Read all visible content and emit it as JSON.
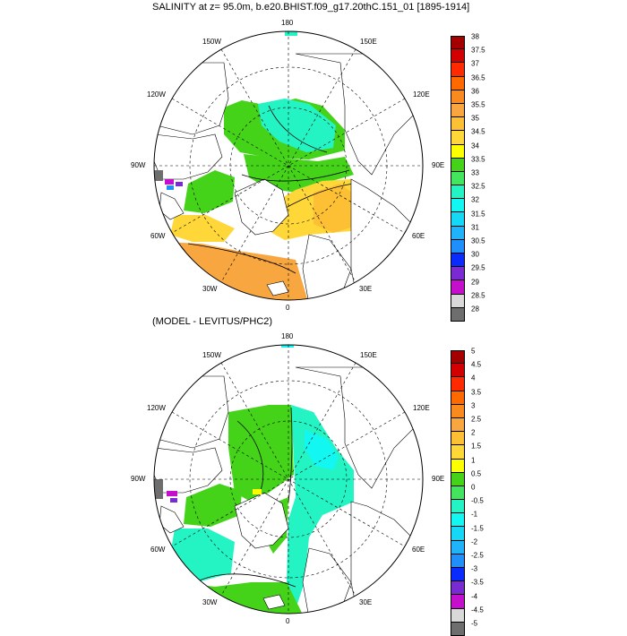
{
  "top_panel": {
    "title": "SALINITY at z=  95.0m, b.e20.BHIST.f09_g17.20thC.151_01 [1895-1914]",
    "longitude_labels": {
      "n180": "180",
      "nw150": "150W",
      "ne150": "150E",
      "w120": "120W",
      "e120": "120E",
      "w90": "90W",
      "e90": "90E",
      "w60": "60W",
      "e60": "60E",
      "w30": "30W",
      "e30": "30E",
      "s0": "0"
    },
    "colorbar": {
      "colors": [
        "#a40000",
        "#d20000",
        "#ff2a00",
        "#ff6a00",
        "#f98a1e",
        "#f8a640",
        "#fdbf34",
        "#ffd739",
        "#fbff00",
        "#45d31a",
        "#43e45e",
        "#24f4c4",
        "#13f7f2",
        "#14d8f6",
        "#1fb3fa",
        "#1f8ffb",
        "#0a2bfd",
        "#7a2ad1",
        "#c410cd",
        "#d9d9d9",
        "#6e6e6e"
      ],
      "tick_labels": [
        "38",
        "37.5",
        "37",
        "36.5",
        "36",
        "35.5",
        "35",
        "34.5",
        "34",
        "33.5",
        "33",
        "32.5",
        "32",
        "31.5",
        "31",
        "30.5",
        "30",
        "29.5",
        "29",
        "28.5",
        "28"
      ]
    }
  },
  "bottom_panel": {
    "title": "(MODEL - LEVITUS/PHC2)",
    "longitude_labels": {
      "n180": "180",
      "nw150": "150W",
      "ne150": "150E",
      "w120": "120W",
      "e120": "120E",
      "w90": "90W",
      "e90": "90E",
      "w60": "60W",
      "e60": "60E",
      "w30": "30W",
      "e30": "30E",
      "s0": "0"
    },
    "colorbar": {
      "colors": [
        "#a40000",
        "#d20000",
        "#ff2a00",
        "#ff6a00",
        "#f98a1e",
        "#f8a640",
        "#fdbf34",
        "#ffd739",
        "#fbff00",
        "#45d31a",
        "#43e45e",
        "#24f4c4",
        "#13f7f2",
        "#14d8f6",
        "#1fb3fa",
        "#1f8ffb",
        "#0a2bfd",
        "#7a2ad1",
        "#c410cd",
        "#d9d9d9",
        "#6e6e6e"
      ],
      "tick_labels": [
        "5",
        "4.5",
        "4",
        "3.5",
        "3",
        "2.5",
        "2",
        "1.5",
        "1",
        "0.5",
        "0",
        "-0.5",
        "-1",
        "-1.5",
        "-2",
        "-2.5",
        "-3",
        "-3.5",
        "-4",
        "-4.5",
        "-5"
      ]
    }
  }
}
